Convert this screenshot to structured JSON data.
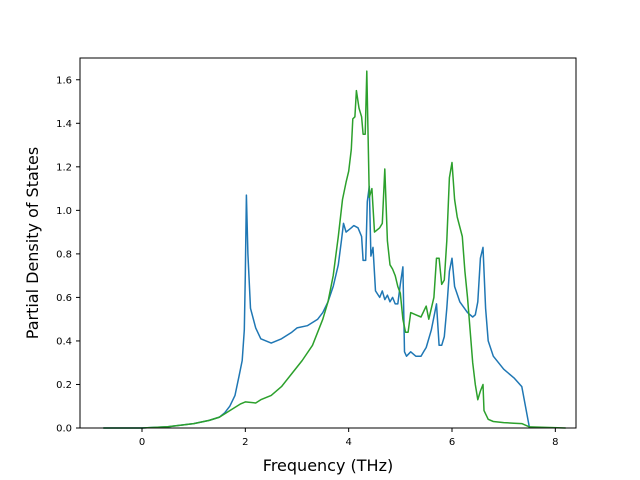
{
  "chart_data": {
    "type": "line",
    "xlabel": "Frequency (THz)",
    "ylabel": "Partial Density of States",
    "xlim": [
      -1.2,
      8.4
    ],
    "ylim": [
      0.0,
      1.7
    ],
    "xticks": [
      0,
      2,
      4,
      6,
      8
    ],
    "yticks": [
      0.0,
      0.2,
      0.4,
      0.6,
      0.8,
      1.0,
      1.2,
      1.4,
      1.6
    ],
    "xtick_labels": [
      "0",
      "2",
      "4",
      "6",
      "8"
    ],
    "ytick_labels": [
      "0.0",
      "0.2",
      "0.4",
      "0.6",
      "0.8",
      "1.0",
      "1.2",
      "1.4",
      "1.6"
    ],
    "grid": false,
    "series": [
      {
        "color": "#1f77b4",
        "points": [
          [
            -0.75,
            0.0
          ],
          [
            0.0,
            0.0
          ],
          [
            0.5,
            0.006
          ],
          [
            1.0,
            0.02
          ],
          [
            1.3,
            0.035
          ],
          [
            1.5,
            0.05
          ],
          [
            1.6,
            0.07
          ],
          [
            1.7,
            0.1
          ],
          [
            1.8,
            0.15
          ],
          [
            1.88,
            0.24
          ],
          [
            1.94,
            0.31
          ],
          [
            1.98,
            0.45
          ],
          [
            2.0,
            0.7
          ],
          [
            2.02,
            1.07
          ],
          [
            2.05,
            0.8
          ],
          [
            2.1,
            0.55
          ],
          [
            2.2,
            0.46
          ],
          [
            2.3,
            0.41
          ],
          [
            2.5,
            0.39
          ],
          [
            2.7,
            0.41
          ],
          [
            2.9,
            0.44
          ],
          [
            3.0,
            0.46
          ],
          [
            3.2,
            0.47
          ],
          [
            3.4,
            0.5
          ],
          [
            3.5,
            0.53
          ],
          [
            3.6,
            0.58
          ],
          [
            3.7,
            0.65
          ],
          [
            3.8,
            0.75
          ],
          [
            3.86,
            0.86
          ],
          [
            3.9,
            0.94
          ],
          [
            3.95,
            0.9
          ],
          [
            4.05,
            0.92
          ],
          [
            4.1,
            0.93
          ],
          [
            4.18,
            0.92
          ],
          [
            4.25,
            0.88
          ],
          [
            4.28,
            0.77
          ],
          [
            4.33,
            0.77
          ],
          [
            4.36,
            1.04
          ],
          [
            4.4,
            1.11
          ],
          [
            4.43,
            0.79
          ],
          [
            4.47,
            0.83
          ],
          [
            4.52,
            0.63
          ],
          [
            4.6,
            0.6
          ],
          [
            4.65,
            0.63
          ],
          [
            4.7,
            0.59
          ],
          [
            4.75,
            0.61
          ],
          [
            4.8,
            0.58
          ],
          [
            4.85,
            0.6
          ],
          [
            4.9,
            0.57
          ],
          [
            4.95,
            0.57
          ],
          [
            5.0,
            0.66
          ],
          [
            5.05,
            0.74
          ],
          [
            5.08,
            0.35
          ],
          [
            5.12,
            0.33
          ],
          [
            5.2,
            0.35
          ],
          [
            5.3,
            0.33
          ],
          [
            5.4,
            0.33
          ],
          [
            5.45,
            0.35
          ],
          [
            5.5,
            0.37
          ],
          [
            5.6,
            0.45
          ],
          [
            5.7,
            0.57
          ],
          [
            5.75,
            0.38
          ],
          [
            5.8,
            0.38
          ],
          [
            5.85,
            0.42
          ],
          [
            5.9,
            0.55
          ],
          [
            5.95,
            0.72
          ],
          [
            6.0,
            0.78
          ],
          [
            6.05,
            0.65
          ],
          [
            6.15,
            0.58
          ],
          [
            6.3,
            0.53
          ],
          [
            6.4,
            0.51
          ],
          [
            6.45,
            0.52
          ],
          [
            6.5,
            0.58
          ],
          [
            6.55,
            0.78
          ],
          [
            6.6,
            0.83
          ],
          [
            6.65,
            0.55
          ],
          [
            6.7,
            0.4
          ],
          [
            6.8,
            0.33
          ],
          [
            7.0,
            0.27
          ],
          [
            7.2,
            0.23
          ],
          [
            7.35,
            0.19
          ],
          [
            7.5,
            0.0
          ]
        ]
      },
      {
        "color": "#2ca02c",
        "points": [
          [
            -0.75,
            0.0
          ],
          [
            0.0,
            0.0
          ],
          [
            0.5,
            0.006
          ],
          [
            1.0,
            0.02
          ],
          [
            1.3,
            0.035
          ],
          [
            1.5,
            0.05
          ],
          [
            1.7,
            0.08
          ],
          [
            1.9,
            0.11
          ],
          [
            2.0,
            0.12
          ],
          [
            2.2,
            0.115
          ],
          [
            2.3,
            0.13
          ],
          [
            2.5,
            0.15
          ],
          [
            2.7,
            0.19
          ],
          [
            2.9,
            0.25
          ],
          [
            3.1,
            0.31
          ],
          [
            3.3,
            0.38
          ],
          [
            3.5,
            0.5
          ],
          [
            3.6,
            0.58
          ],
          [
            3.7,
            0.7
          ],
          [
            3.8,
            0.88
          ],
          [
            3.88,
            1.05
          ],
          [
            3.95,
            1.13
          ],
          [
            4.0,
            1.18
          ],
          [
            4.05,
            1.28
          ],
          [
            4.08,
            1.42
          ],
          [
            4.12,
            1.43
          ],
          [
            4.15,
            1.55
          ],
          [
            4.2,
            1.47
          ],
          [
            4.25,
            1.43
          ],
          [
            4.28,
            1.35
          ],
          [
            4.32,
            1.35
          ],
          [
            4.35,
            1.64
          ],
          [
            4.4,
            1.06
          ],
          [
            4.45,
            1.1
          ],
          [
            4.5,
            0.9
          ],
          [
            4.55,
            0.91
          ],
          [
            4.6,
            0.92
          ],
          [
            4.65,
            0.94
          ],
          [
            4.7,
            1.19
          ],
          [
            4.75,
            0.86
          ],
          [
            4.8,
            0.75
          ],
          [
            4.85,
            0.73
          ],
          [
            4.9,
            0.7
          ],
          [
            4.95,
            0.65
          ],
          [
            5.0,
            0.62
          ],
          [
            5.05,
            0.5
          ],
          [
            5.1,
            0.44
          ],
          [
            5.15,
            0.44
          ],
          [
            5.2,
            0.53
          ],
          [
            5.3,
            0.52
          ],
          [
            5.4,
            0.51
          ],
          [
            5.5,
            0.56
          ],
          [
            5.55,
            0.5
          ],
          [
            5.65,
            0.6
          ],
          [
            5.7,
            0.78
          ],
          [
            5.75,
            0.78
          ],
          [
            5.8,
            0.66
          ],
          [
            5.85,
            0.68
          ],
          [
            5.9,
            0.86
          ],
          [
            5.95,
            1.15
          ],
          [
            6.0,
            1.22
          ],
          [
            6.05,
            1.05
          ],
          [
            6.1,
            0.97
          ],
          [
            6.2,
            0.88
          ],
          [
            6.25,
            0.72
          ],
          [
            6.3,
            0.6
          ],
          [
            6.35,
            0.45
          ],
          [
            6.4,
            0.3
          ],
          [
            6.45,
            0.2
          ],
          [
            6.5,
            0.13
          ],
          [
            6.55,
            0.17
          ],
          [
            6.6,
            0.2
          ],
          [
            6.62,
            0.08
          ],
          [
            6.7,
            0.04
          ],
          [
            6.8,
            0.03
          ],
          [
            7.0,
            0.025
          ],
          [
            7.2,
            0.022
          ],
          [
            7.35,
            0.02
          ],
          [
            7.5,
            0.005
          ],
          [
            8.2,
            0.0
          ]
        ]
      }
    ]
  }
}
